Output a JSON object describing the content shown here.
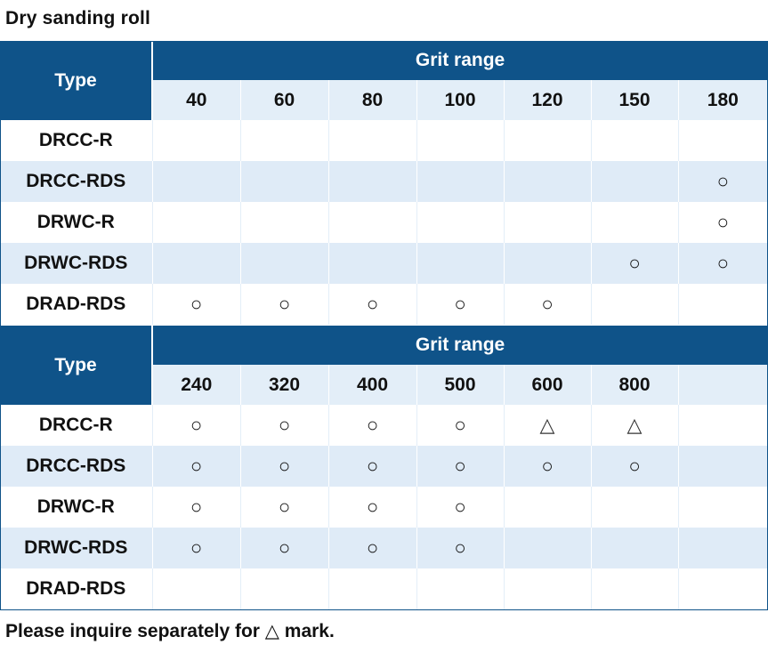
{
  "title": "Dry sanding roll",
  "note": "Please inquire separately for △ mark.",
  "tables": [
    {
      "type_label": "Type",
      "range_label": "Grit range",
      "grits": [
        "40",
        "60",
        "80",
        "100",
        "120",
        "150",
        "180"
      ],
      "rows": [
        {
          "type": "DRCC-R",
          "marks": [
            "",
            "",
            "",
            "",
            "",
            "",
            ""
          ]
        },
        {
          "type": "DRCC-RDS",
          "marks": [
            "",
            "",
            "",
            "",
            "",
            "",
            "○"
          ]
        },
        {
          "type": "DRWC-R",
          "marks": [
            "",
            "",
            "",
            "",
            "",
            "",
            "○"
          ]
        },
        {
          "type": "DRWC-RDS",
          "marks": [
            "",
            "",
            "",
            "",
            "",
            "○",
            "○"
          ]
        },
        {
          "type": "DRAD-RDS",
          "marks": [
            "○",
            "○",
            "○",
            "○",
            "○",
            "",
            ""
          ]
        }
      ]
    },
    {
      "type_label": "Type",
      "range_label": "Grit range",
      "grits": [
        "240",
        "320",
        "400",
        "500",
        "600",
        "800",
        ""
      ],
      "rows": [
        {
          "type": "DRCC-R",
          "marks": [
            "○",
            "○",
            "○",
            "○",
            "△",
            "△",
            ""
          ]
        },
        {
          "type": "DRCC-RDS",
          "marks": [
            "○",
            "○",
            "○",
            "○",
            "○",
            "○",
            ""
          ]
        },
        {
          "type": "DRWC-R",
          "marks": [
            "○",
            "○",
            "○",
            "○",
            "",
            "",
            ""
          ]
        },
        {
          "type": "DRWC-RDS",
          "marks": [
            "○",
            "○",
            "○",
            "○",
            "",
            "",
            ""
          ]
        },
        {
          "type": "DRAD-RDS",
          "marks": [
            "",
            "",
            "",
            "",
            "",
            "",
            ""
          ]
        }
      ]
    }
  ]
}
